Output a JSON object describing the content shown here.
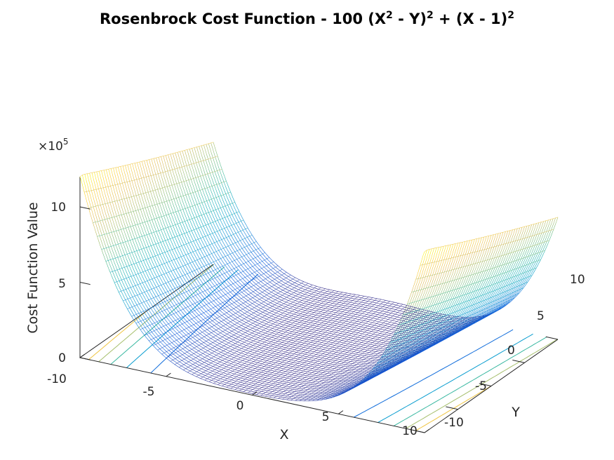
{
  "chart_data": {
    "type": "surface",
    "title": {
      "prefix": "Rosenbrock Cost Function - 100 (X",
      "sup1": "2",
      "mid1": " - Y)",
      "sup2": "2",
      "mid2": " + (X - 1)",
      "sup3": "2"
    },
    "function": "100*(X^2 - Y)^2 + (X - 1)^2",
    "xlabel": "X",
    "ylabel": "Y",
    "zlabel": "Cost Function Value",
    "z_multiplier_label": "×10",
    "z_multiplier_exp": "5",
    "xlim": [
      -10,
      10
    ],
    "ylim": [
      -10,
      10
    ],
    "zlim": [
      0,
      1200000
    ],
    "x_ticks": [
      -10,
      -5,
      0,
      5,
      10
    ],
    "y_ticks": [
      -10,
      -5,
      0,
      5,
      10
    ],
    "z_ticks": [
      0,
      5,
      10
    ],
    "x_tick_labels": [
      "-10",
      "-5",
      "0",
      "5",
      "10"
    ],
    "y_tick_labels": [
      "-10",
      "-5",
      "0",
      "5",
      "10"
    ],
    "z_tick_labels": [
      "0",
      "5",
      "10"
    ],
    "colormap": "parula",
    "contour_projection": true,
    "grid": false
  }
}
